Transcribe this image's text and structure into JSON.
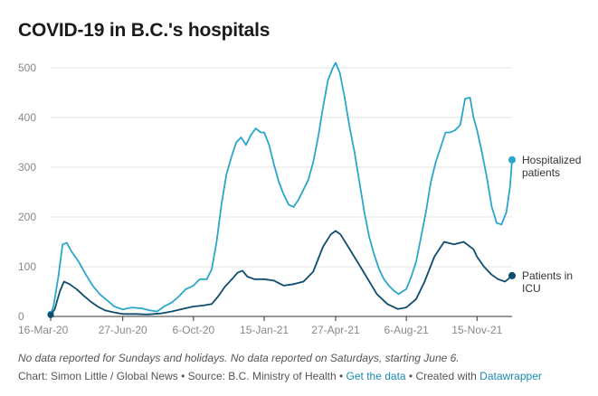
{
  "title": "COVID-19 in B.C.'s hospitals",
  "notes": "No data reported for Sundays and holidays. No data reported on Saturdays, starting June 6.",
  "credits": {
    "prefix": "Chart: Simon Little / Global News • Source: B.C. Ministry of Health • ",
    "get_data": "Get the data",
    "mid": " • Created with ",
    "datawrapper": "Datawrapper"
  },
  "colors": {
    "hospitalized": "#2ba6cb",
    "icu": "#0e4d6e",
    "grid": "#e3e3e3",
    "axis": "#333333"
  },
  "chart_data": {
    "type": "line",
    "title": "COVID-19 in B.C.'s hospitals",
    "xlabel": "",
    "ylabel": "",
    "ylim": [
      0,
      500
    ],
    "yticks": [
      "0",
      "100",
      "200",
      "300",
      "400",
      "500"
    ],
    "xlim": [
      "2020-03-16",
      "2022-01-04"
    ],
    "xticks": [
      {
        "label": "16-Mar-20",
        "date": "2020-03-16"
      },
      {
        "label": "27-Jun-20",
        "date": "2020-06-27"
      },
      {
        "label": "6-Oct-20",
        "date": "2020-10-06"
      },
      {
        "label": "15-Jan-21",
        "date": "2021-01-15"
      },
      {
        "label": "27-Apr-21",
        "date": "2021-04-27"
      },
      {
        "label": "6-Aug-21",
        "date": "2021-08-06"
      },
      {
        "label": "15-Nov-21",
        "date": "2021-11-15"
      }
    ],
    "grid": true,
    "series": [
      {
        "name": "Hospitalized patients",
        "label_lines": [
          "Hospitalized",
          "patients"
        ],
        "points": [
          [
            "2020-03-16",
            5
          ],
          [
            "2020-03-20",
            20
          ],
          [
            "2020-03-27",
            80
          ],
          [
            "2020-04-02",
            145
          ],
          [
            "2020-04-08",
            148
          ],
          [
            "2020-04-15",
            130
          ],
          [
            "2020-04-25",
            110
          ],
          [
            "2020-05-05",
            85
          ],
          [
            "2020-05-15",
            62
          ],
          [
            "2020-05-25",
            45
          ],
          [
            "2020-06-05",
            32
          ],
          [
            "2020-06-15",
            20
          ],
          [
            "2020-06-27",
            14
          ],
          [
            "2020-07-10",
            18
          ],
          [
            "2020-07-25",
            16
          ],
          [
            "2020-08-05",
            12
          ],
          [
            "2020-08-15",
            10
          ],
          [
            "2020-08-25",
            20
          ],
          [
            "2020-09-05",
            28
          ],
          [
            "2020-09-15",
            40
          ],
          [
            "2020-09-25",
            55
          ],
          [
            "2020-10-06",
            62
          ],
          [
            "2020-10-15",
            75
          ],
          [
            "2020-10-25",
            75
          ],
          [
            "2020-11-01",
            95
          ],
          [
            "2020-11-08",
            150
          ],
          [
            "2020-11-15",
            225
          ],
          [
            "2020-11-22",
            285
          ],
          [
            "2020-11-29",
            320
          ],
          [
            "2020-12-06",
            350
          ],
          [
            "2020-12-13",
            360
          ],
          [
            "2020-12-20",
            345
          ],
          [
            "2020-12-27",
            365
          ],
          [
            "2021-01-03",
            378
          ],
          [
            "2021-01-10",
            370
          ],
          [
            "2021-01-15",
            370
          ],
          [
            "2021-01-22",
            345
          ],
          [
            "2021-01-29",
            305
          ],
          [
            "2021-02-05",
            270
          ],
          [
            "2021-02-12",
            245
          ],
          [
            "2021-02-19",
            225
          ],
          [
            "2021-02-26",
            220
          ],
          [
            "2021-03-05",
            235
          ],
          [
            "2021-03-12",
            255
          ],
          [
            "2021-03-19",
            275
          ],
          [
            "2021-03-26",
            310
          ],
          [
            "2021-04-02",
            360
          ],
          [
            "2021-04-09",
            420
          ],
          [
            "2021-04-16",
            475
          ],
          [
            "2021-04-23",
            500
          ],
          [
            "2021-04-27",
            510
          ],
          [
            "2021-05-03",
            490
          ],
          [
            "2021-05-10",
            440
          ],
          [
            "2021-05-17",
            380
          ],
          [
            "2021-05-24",
            330
          ],
          [
            "2021-05-31",
            270
          ],
          [
            "2021-06-07",
            210
          ],
          [
            "2021-06-14",
            160
          ],
          [
            "2021-06-21",
            125
          ],
          [
            "2021-06-28",
            95
          ],
          [
            "2021-07-05",
            75
          ],
          [
            "2021-07-12",
            62
          ],
          [
            "2021-07-19",
            52
          ],
          [
            "2021-07-26",
            45
          ],
          [
            "2021-08-06",
            55
          ],
          [
            "2021-08-13",
            80
          ],
          [
            "2021-08-20",
            110
          ],
          [
            "2021-08-27",
            160
          ],
          [
            "2021-09-03",
            210
          ],
          [
            "2021-09-10",
            270
          ],
          [
            "2021-09-17",
            310
          ],
          [
            "2021-09-24",
            340
          ],
          [
            "2021-10-01",
            370
          ],
          [
            "2021-10-08",
            370
          ],
          [
            "2021-10-15",
            375
          ],
          [
            "2021-10-22",
            385
          ],
          [
            "2021-10-29",
            438
          ],
          [
            "2021-11-05",
            440
          ],
          [
            "2021-11-10",
            400
          ],
          [
            "2021-11-15",
            375
          ],
          [
            "2021-11-22",
            330
          ],
          [
            "2021-11-29",
            280
          ],
          [
            "2021-12-06",
            220
          ],
          [
            "2021-12-13",
            188
          ],
          [
            "2021-12-20",
            185
          ],
          [
            "2021-12-27",
            210
          ],
          [
            "2022-01-01",
            260
          ],
          [
            "2022-01-04",
            315
          ]
        ]
      },
      {
        "name": "Patients in ICU",
        "label_lines": [
          "Patients in",
          "ICU"
        ],
        "points": [
          [
            "2020-03-16",
            3
          ],
          [
            "2020-03-22",
            15
          ],
          [
            "2020-03-29",
            50
          ],
          [
            "2020-04-04",
            70
          ],
          [
            "2020-04-12",
            65
          ],
          [
            "2020-04-22",
            55
          ],
          [
            "2020-05-02",
            42
          ],
          [
            "2020-05-12",
            30
          ],
          [
            "2020-05-22",
            20
          ],
          [
            "2020-06-02",
            12
          ],
          [
            "2020-06-15",
            8
          ],
          [
            "2020-06-27",
            5
          ],
          [
            "2020-07-15",
            5
          ],
          [
            "2020-08-01",
            4
          ],
          [
            "2020-08-20",
            6
          ],
          [
            "2020-09-05",
            10
          ],
          [
            "2020-09-20",
            15
          ],
          [
            "2020-10-06",
            20
          ],
          [
            "2020-10-20",
            22
          ],
          [
            "2020-11-01",
            25
          ],
          [
            "2020-11-10",
            40
          ],
          [
            "2020-11-20",
            60
          ],
          [
            "2020-11-30",
            75
          ],
          [
            "2020-12-08",
            88
          ],
          [
            "2020-12-15",
            92
          ],
          [
            "2020-12-22",
            80
          ],
          [
            "2021-01-01",
            75
          ],
          [
            "2021-01-15",
            75
          ],
          [
            "2021-01-29",
            72
          ],
          [
            "2021-02-12",
            62
          ],
          [
            "2021-02-26",
            65
          ],
          [
            "2021-03-12",
            70
          ],
          [
            "2021-03-26",
            90
          ],
          [
            "2021-04-09",
            140
          ],
          [
            "2021-04-20",
            165
          ],
          [
            "2021-04-27",
            172
          ],
          [
            "2021-05-04",
            165
          ],
          [
            "2021-05-15",
            140
          ],
          [
            "2021-05-28",
            110
          ],
          [
            "2021-06-10",
            80
          ],
          [
            "2021-06-25",
            45
          ],
          [
            "2021-07-10",
            25
          ],
          [
            "2021-07-25",
            15
          ],
          [
            "2021-08-06",
            18
          ],
          [
            "2021-08-20",
            35
          ],
          [
            "2021-09-01",
            70
          ],
          [
            "2021-09-15",
            120
          ],
          [
            "2021-09-29",
            150
          ],
          [
            "2021-10-13",
            145
          ],
          [
            "2021-10-27",
            150
          ],
          [
            "2021-11-10",
            135
          ],
          [
            "2021-11-15",
            120
          ],
          [
            "2021-11-25",
            100
          ],
          [
            "2021-12-05",
            85
          ],
          [
            "2021-12-15",
            75
          ],
          [
            "2021-12-25",
            70
          ],
          [
            "2022-01-04",
            82
          ]
        ]
      }
    ]
  }
}
